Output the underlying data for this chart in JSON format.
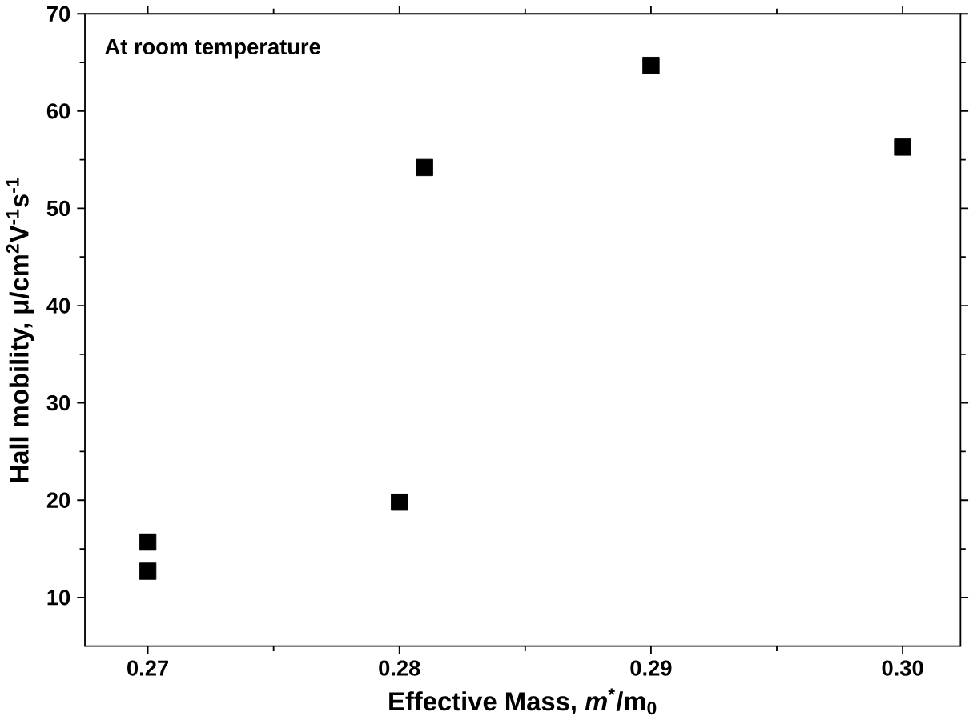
{
  "chart_data": {
    "type": "scatter",
    "xlabel": "Effective Mass, *m*$^{*}$/m$_{0}$",
    "ylabel": "Hall mobility, μ/cm$^{2}$V$^{-1}$s$^{-1}$",
    "annotations": [
      "At room temperature"
    ],
    "x": [
      0.27,
      0.27,
      0.28,
      0.281,
      0.29,
      0.3
    ],
    "values": [
      15.7,
      12.7,
      19.8,
      54.2,
      64.7,
      56.3
    ],
    "color": "#000000",
    "marker": "square",
    "xlim": [
      0.2675,
      0.3023
    ],
    "ylim": [
      5,
      70
    ],
    "xticks": [
      {
        "value": 0.27,
        "label": "0.27"
      },
      {
        "value": 0.28,
        "label": "0.28"
      },
      {
        "value": 0.29,
        "label": "0.29"
      },
      {
        "value": 0.3,
        "label": "0.30"
      }
    ],
    "yticks": [
      10,
      20,
      30,
      40,
      50,
      60,
      70
    ],
    "grid": false
  }
}
